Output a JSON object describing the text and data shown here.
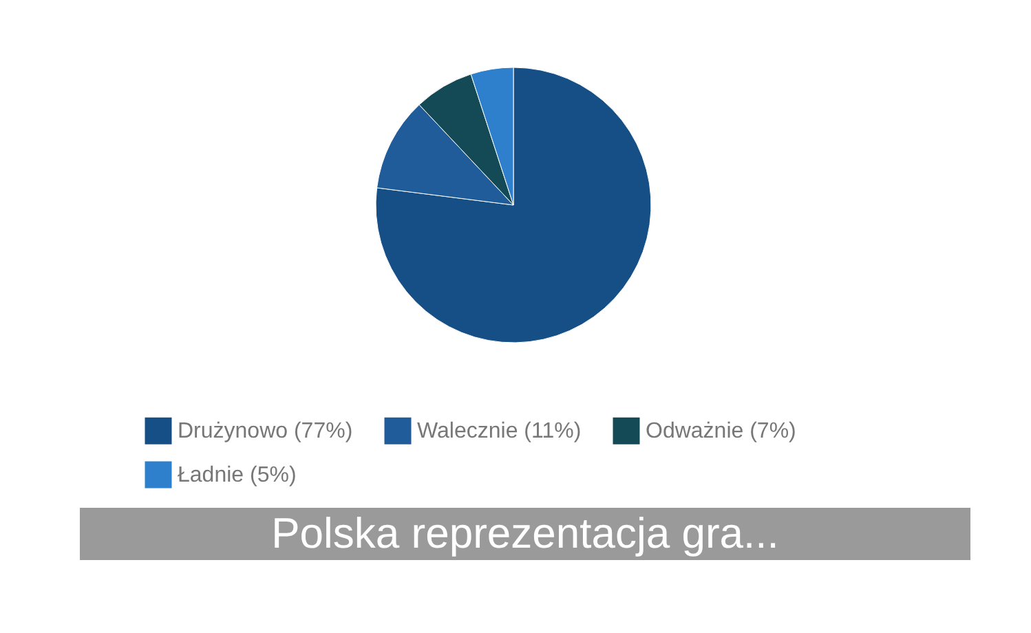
{
  "chart_data": {
    "type": "pie",
    "title": "Polska reprezentacja gra...",
    "categories": [
      "Drużynowo (77%)",
      "Walecznie (11%)",
      "Odważnie (7%)",
      "Ładnie (5%)"
    ],
    "values": [
      77,
      11,
      7,
      5
    ],
    "colors": [
      "#154f85",
      "#1f5c99",
      "#134a55",
      "#2f80cc"
    ],
    "legend": "bottom"
  }
}
